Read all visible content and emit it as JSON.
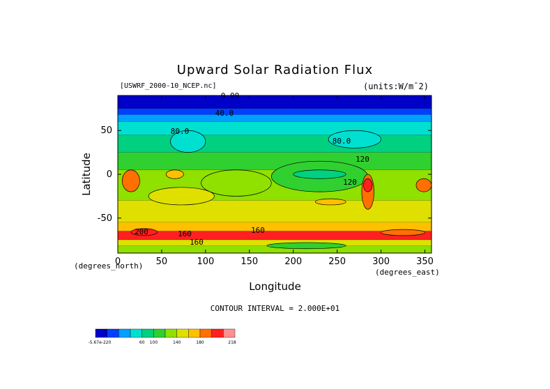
{
  "chart_data": {
    "type": "heatmap",
    "title": "Upward Solar Radiation Flux",
    "dataset": "[USWRF_2000-10_NCEP.nc]",
    "units": "(units:W/m^2)",
    "xlabel": "Longitude",
    "x_unit_left": "(degrees_north)",
    "x_unit_right": "(degrees_east)",
    "ylabel": "Latitude",
    "xlim": [
      0,
      357.5
    ],
    "ylim": [
      -90,
      90
    ],
    "xticks": [
      0,
      50,
      100,
      150,
      200,
      250,
      300,
      350
    ],
    "yticks": [
      50,
      0,
      -50
    ],
    "contour_interval": "CONTOUR INTERVAL = 2.000E+01",
    "colorbar": {
      "colors": [
        "#0000c8",
        "#0040ff",
        "#00a0ff",
        "#00e0d0",
        "#00d080",
        "#30d030",
        "#90e000",
        "#e0e000",
        "#ffc000",
        "#ff7000",
        "#ff2020",
        "#ff9090"
      ],
      "labels": [
        "-5.67e-220",
        "60",
        "100",
        "140",
        "180",
        "218"
      ]
    },
    "contour_labels": [
      "0.00",
      "40.0",
      "80.0",
      "80.0",
      "120",
      "120",
      "200",
      "160",
      "160",
      "160"
    ],
    "zones": [
      {
        "lat": [
          75,
          90
        ],
        "value": 10
      },
      {
        "lat": [
          68,
          75
        ],
        "value": 30
      },
      {
        "lat": [
          60,
          68
        ],
        "value": 50
      },
      {
        "lat": [
          45,
          60
        ],
        "value": 70
      },
      {
        "lat": [
          25,
          45
        ],
        "value": 90
      },
      {
        "lat": [
          5,
          25
        ],
        "value": 110
      },
      {
        "lat": [
          -30,
          5
        ],
        "value": 130
      },
      {
        "lat": [
          -55,
          -30
        ],
        "value": 150
      },
      {
        "lat": [
          -65,
          -55
        ],
        "value": 170
      },
      {
        "lat": [
          -75,
          -65
        ],
        "value": 200
      },
      {
        "lat": [
          -82,
          -75
        ],
        "value": 150
      },
      {
        "lat": [
          -90,
          -82
        ],
        "value": 130
      }
    ],
    "features": [
      {
        "lon": [
          5,
          25
        ],
        "lat": [
          -20,
          5
        ],
        "value": 190
      },
      {
        "lon": [
          55,
          75
        ],
        "lat": [
          -5,
          5
        ],
        "value": 170
      },
      {
        "lon": [
          35,
          110
        ],
        "lat": [
          -35,
          -15
        ],
        "value": 150
      },
      {
        "lon": [
          95,
          175
        ],
        "lat": [
          -25,
          5
        ],
        "value": 130
      },
      {
        "lon": [
          175,
          285
        ],
        "lat": [
          -20,
          15
        ],
        "value": 110
      },
      {
        "lon": [
          200,
          260
        ],
        "lat": [
          -5,
          5
        ],
        "value": 90
      },
      {
        "lon": [
          278,
          292
        ],
        "lat": [
          -40,
          0
        ],
        "value": 180
      },
      {
        "lon": [
          280,
          290
        ],
        "lat": [
          -20,
          -5
        ],
        "value": 200
      },
      {
        "lon": [
          225,
          260
        ],
        "lat": [
          -35,
          -28
        ],
        "value": 170
      },
      {
        "lon": [
          340,
          357.5
        ],
        "lat": [
          -20,
          -5
        ],
        "value": 190
      },
      {
        "lon": [
          60,
          100
        ],
        "lat": [
          25,
          50
        ],
        "value": 70
      },
      {
        "lon": [
          240,
          300
        ],
        "lat": [
          30,
          50
        ],
        "value": 70
      },
      {
        "lon": [
          15,
          45
        ],
        "lat": [
          -70,
          -62
        ],
        "value": 210
      },
      {
        "lon": [
          300,
          350
        ],
        "lat": [
          -70,
          -63
        ],
        "value": 190
      },
      {
        "lon": [
          170,
          260
        ],
        "lat": [
          -85,
          -78
        ],
        "value": 110
      }
    ]
  }
}
